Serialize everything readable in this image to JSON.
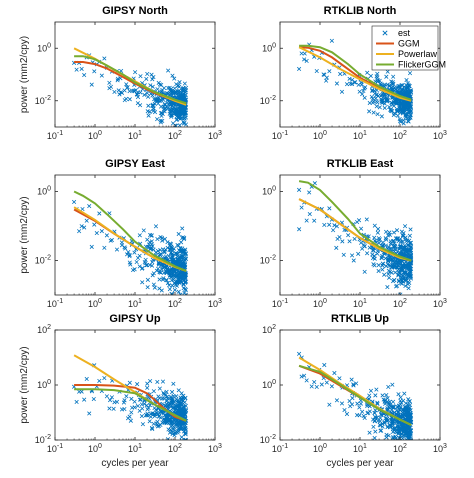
{
  "figure": {
    "ylabel": "power (mm2/cpy)",
    "xlabel": "cycles per year"
  },
  "legend": {
    "entries": [
      "est",
      "GGM",
      "Powerlaw",
      "FlickerGGM"
    ]
  },
  "colors": {
    "est": "#0072BD",
    "GGM": "#D95319",
    "Powerlaw": "#EDB120",
    "FlickerGGM": "#77AC30"
  },
  "chart_data": [
    {
      "type": "scatter",
      "title": "GIPSY North",
      "xscale": "log",
      "yscale": "log",
      "xlim": [
        0.1,
        1000
      ],
      "ylim": [
        0.001,
        10
      ],
      "xticks": [
        "10-1",
        "100",
        "101",
        "102",
        "103"
      ],
      "yticks": [
        "10-2",
        "100"
      ],
      "ylabel": "power (mm2/cpy)",
      "xlabel": "",
      "grid": false,
      "est": {
        "x_range": [
          0.3,
          190
        ],
        "trend": [
          [
            0.3,
            0.3
          ],
          [
            1,
            0.2
          ],
          [
            3,
            0.08
          ],
          [
            10,
            0.03
          ],
          [
            30,
            0.015
          ],
          [
            100,
            0.008
          ],
          [
            190,
            0.006
          ]
        ],
        "scatter_spread": 0.35
      },
      "series": [
        {
          "name": "GGM",
          "x": [
            0.3,
            0.5,
            1,
            2,
            5,
            10,
            30,
            100,
            190
          ],
          "y": [
            0.3,
            0.3,
            0.25,
            0.17,
            0.08,
            0.045,
            0.02,
            0.01,
            0.008
          ]
        },
        {
          "name": "Powerlaw",
          "x": [
            0.3,
            1,
            3,
            10,
            30,
            100,
            190
          ],
          "y": [
            1.0,
            0.4,
            0.15,
            0.055,
            0.022,
            0.01,
            0.007
          ]
        },
        {
          "name": "FlickerGGM",
          "x": [
            0.3,
            0.5,
            1,
            2,
            5,
            10,
            30,
            100,
            190
          ],
          "y": [
            0.5,
            0.5,
            0.38,
            0.22,
            0.1,
            0.05,
            0.022,
            0.011,
            0.008
          ]
        }
      ]
    },
    {
      "type": "scatter",
      "title": "RTKLIB North",
      "xscale": "log",
      "yscale": "log",
      "xlim": [
        0.1,
        1000
      ],
      "ylim": [
        0.001,
        10
      ],
      "xticks": [
        "10-1",
        "100",
        "101",
        "102",
        "103"
      ],
      "yticks": [
        "10-2",
        "100"
      ],
      "ylabel": "",
      "xlabel": "",
      "grid": false,
      "legend": "top-right",
      "est": {
        "x_range": [
          0.3,
          190
        ],
        "trend": [
          [
            0.3,
            0.8
          ],
          [
            1,
            0.3
          ],
          [
            3,
            0.1
          ],
          [
            10,
            0.04
          ],
          [
            30,
            0.02
          ],
          [
            100,
            0.01
          ],
          [
            190,
            0.008
          ]
        ],
        "scatter_spread": 0.35
      },
      "series": [
        {
          "name": "GGM",
          "x": [
            0.3,
            0.5,
            1,
            2,
            5,
            10,
            30,
            100,
            190
          ],
          "y": [
            1.1,
            1.05,
            0.8,
            0.45,
            0.16,
            0.075,
            0.03,
            0.014,
            0.011
          ]
        },
        {
          "name": "Powerlaw",
          "x": [
            0.3,
            1,
            3,
            10,
            30,
            100,
            190
          ],
          "y": [
            1.1,
            0.45,
            0.17,
            0.065,
            0.028,
            0.013,
            0.01
          ]
        },
        {
          "name": "FlickerGGM",
          "x": [
            0.3,
            0.5,
            1,
            2,
            5,
            10,
            30,
            100,
            190
          ],
          "y": [
            1.25,
            1.25,
            1.1,
            0.7,
            0.25,
            0.1,
            0.035,
            0.015,
            0.011
          ]
        }
      ]
    },
    {
      "type": "scatter",
      "title": "GIPSY East",
      "xscale": "log",
      "yscale": "log",
      "xlim": [
        0.1,
        1000
      ],
      "ylim": [
        0.001,
        3
      ],
      "xticks": [
        "10-1",
        "100",
        "101",
        "102",
        "103"
      ],
      "yticks": [
        "10-2",
        "100"
      ],
      "ylabel": "power (mm2/cpy)",
      "xlabel": "",
      "grid": false,
      "est": {
        "x_range": [
          0.3,
          190
        ],
        "trend": [
          [
            0.3,
            0.2
          ],
          [
            1,
            0.1
          ],
          [
            3,
            0.04
          ],
          [
            10,
            0.02
          ],
          [
            30,
            0.01
          ],
          [
            100,
            0.006
          ],
          [
            190,
            0.005
          ]
        ],
        "scatter_spread": 0.35
      },
      "series": [
        {
          "name": "GGM",
          "x": [
            0.3,
            1,
            3,
            10,
            30,
            100,
            190
          ],
          "y": [
            0.3,
            0.14,
            0.06,
            0.025,
            0.012,
            0.0065,
            0.005
          ]
        },
        {
          "name": "Powerlaw",
          "x": [
            0.3,
            1,
            3,
            10,
            30,
            100,
            190
          ],
          "y": [
            0.35,
            0.15,
            0.06,
            0.025,
            0.012,
            0.0065,
            0.005
          ]
        },
        {
          "name": "FlickerGGM",
          "x": [
            0.3,
            0.5,
            1,
            2,
            5,
            10,
            30,
            100,
            190
          ],
          "y": [
            1.0,
            0.75,
            0.45,
            0.22,
            0.08,
            0.035,
            0.014,
            0.0068,
            0.005
          ]
        }
      ]
    },
    {
      "type": "scatter",
      "title": "RTKLIB East",
      "xscale": "log",
      "yscale": "log",
      "xlim": [
        0.1,
        1000
      ],
      "ylim": [
        0.001,
        3
      ],
      "xticks": [
        "10-1",
        "100",
        "101",
        "102",
        "103"
      ],
      "yticks": [
        "10-2",
        "100"
      ],
      "ylabel": "",
      "xlabel": "",
      "grid": false,
      "est": {
        "x_range": [
          0.3,
          190
        ],
        "trend": [
          [
            0.3,
            0.5
          ],
          [
            1,
            0.25
          ],
          [
            3,
            0.1
          ],
          [
            10,
            0.04
          ],
          [
            30,
            0.02
          ],
          [
            100,
            0.011
          ],
          [
            190,
            0.009
          ]
        ],
        "scatter_spread": 0.35
      },
      "series": [
        {
          "name": "GGM",
          "x": [
            0.3,
            1,
            3,
            10,
            30,
            100,
            190
          ],
          "y": [
            0.6,
            0.3,
            0.12,
            0.045,
            0.022,
            0.012,
            0.01
          ]
        },
        {
          "name": "Powerlaw",
          "x": [
            0.3,
            1,
            3,
            10,
            30,
            100,
            190
          ],
          "y": [
            0.6,
            0.3,
            0.12,
            0.045,
            0.022,
            0.012,
            0.01
          ]
        },
        {
          "name": "FlickerGGM",
          "x": [
            0.3,
            0.5,
            1,
            2,
            5,
            10,
            30,
            100,
            190
          ],
          "y": [
            2.0,
            1.8,
            1.1,
            0.5,
            0.16,
            0.06,
            0.025,
            0.013,
            0.01
          ]
        }
      ]
    },
    {
      "type": "scatter",
      "title": "GIPSY Up",
      "xscale": "log",
      "yscale": "log",
      "xlim": [
        0.1,
        1000
      ],
      "ylim": [
        0.01,
        100
      ],
      "xticks": [
        "10-1",
        "100",
        "101",
        "102",
        "103"
      ],
      "yticks": [
        "10-2",
        "100",
        "102"
      ],
      "ylabel": "power (mm2/cpy)",
      "xlabel": "cycles per year",
      "grid": false,
      "est": {
        "x_range": [
          0.3,
          190
        ],
        "trend": [
          [
            0.3,
            0.8
          ],
          [
            1,
            0.6
          ],
          [
            3,
            0.4
          ],
          [
            10,
            0.25
          ],
          [
            30,
            0.15
          ],
          [
            100,
            0.08
          ],
          [
            190,
            0.06
          ]
        ],
        "scatter_spread": 0.4
      },
      "series": [
        {
          "name": "GGM",
          "x": [
            0.3,
            1,
            3,
            10,
            20,
            30,
            50,
            100,
            190
          ],
          "y": [
            1.0,
            1.0,
            0.95,
            0.8,
            0.5,
            0.3,
            0.15,
            0.07,
            0.05
          ]
        },
        {
          "name": "Powerlaw",
          "x": [
            0.3,
            1,
            3,
            10,
            30,
            100,
            190
          ],
          "y": [
            12,
            4.5,
            1.6,
            0.55,
            0.2,
            0.08,
            0.05
          ]
        },
        {
          "name": "FlickerGGM",
          "x": [
            0.3,
            1,
            3,
            10,
            30,
            100,
            190
          ],
          "y": [
            0.7,
            0.7,
            0.65,
            0.5,
            0.2,
            0.08,
            0.05
          ]
        }
      ]
    },
    {
      "type": "scatter",
      "title": "RTKLIB Up",
      "xscale": "log",
      "yscale": "log",
      "xlim": [
        0.1,
        1000
      ],
      "ylim": [
        0.01,
        100
      ],
      "xticks": [
        "10-1",
        "100",
        "101",
        "102",
        "103"
      ],
      "yticks": [
        "10-2",
        "100",
        "102"
      ],
      "ylabel": "",
      "xlabel": "cycles per year",
      "grid": false,
      "est": {
        "x_range": [
          0.3,
          190
        ],
        "trend": [
          [
            0.3,
            6
          ],
          [
            1,
            2.5
          ],
          [
            3,
            0.8
          ],
          [
            10,
            0.3
          ],
          [
            30,
            0.12
          ],
          [
            100,
            0.05
          ],
          [
            190,
            0.035
          ]
        ],
        "scatter_spread": 0.4
      },
      "series": [
        {
          "name": "GGM",
          "x": [
            0.3,
            1,
            3,
            10,
            30,
            100,
            190
          ],
          "y": [
            5.0,
            2.6,
            1.0,
            0.35,
            0.13,
            0.055,
            0.035
          ]
        },
        {
          "name": "Powerlaw",
          "x": [
            0.3,
            1,
            3,
            10,
            30,
            100,
            190
          ],
          "y": [
            10,
            3.5,
            1.2,
            0.4,
            0.14,
            0.055,
            0.035
          ]
        },
        {
          "name": "FlickerGGM",
          "x": [
            0.3,
            1,
            3,
            10,
            30,
            100,
            190
          ],
          "y": [
            5.0,
            3.0,
            1.1,
            0.35,
            0.13,
            0.055,
            0.035
          ]
        }
      ]
    }
  ]
}
